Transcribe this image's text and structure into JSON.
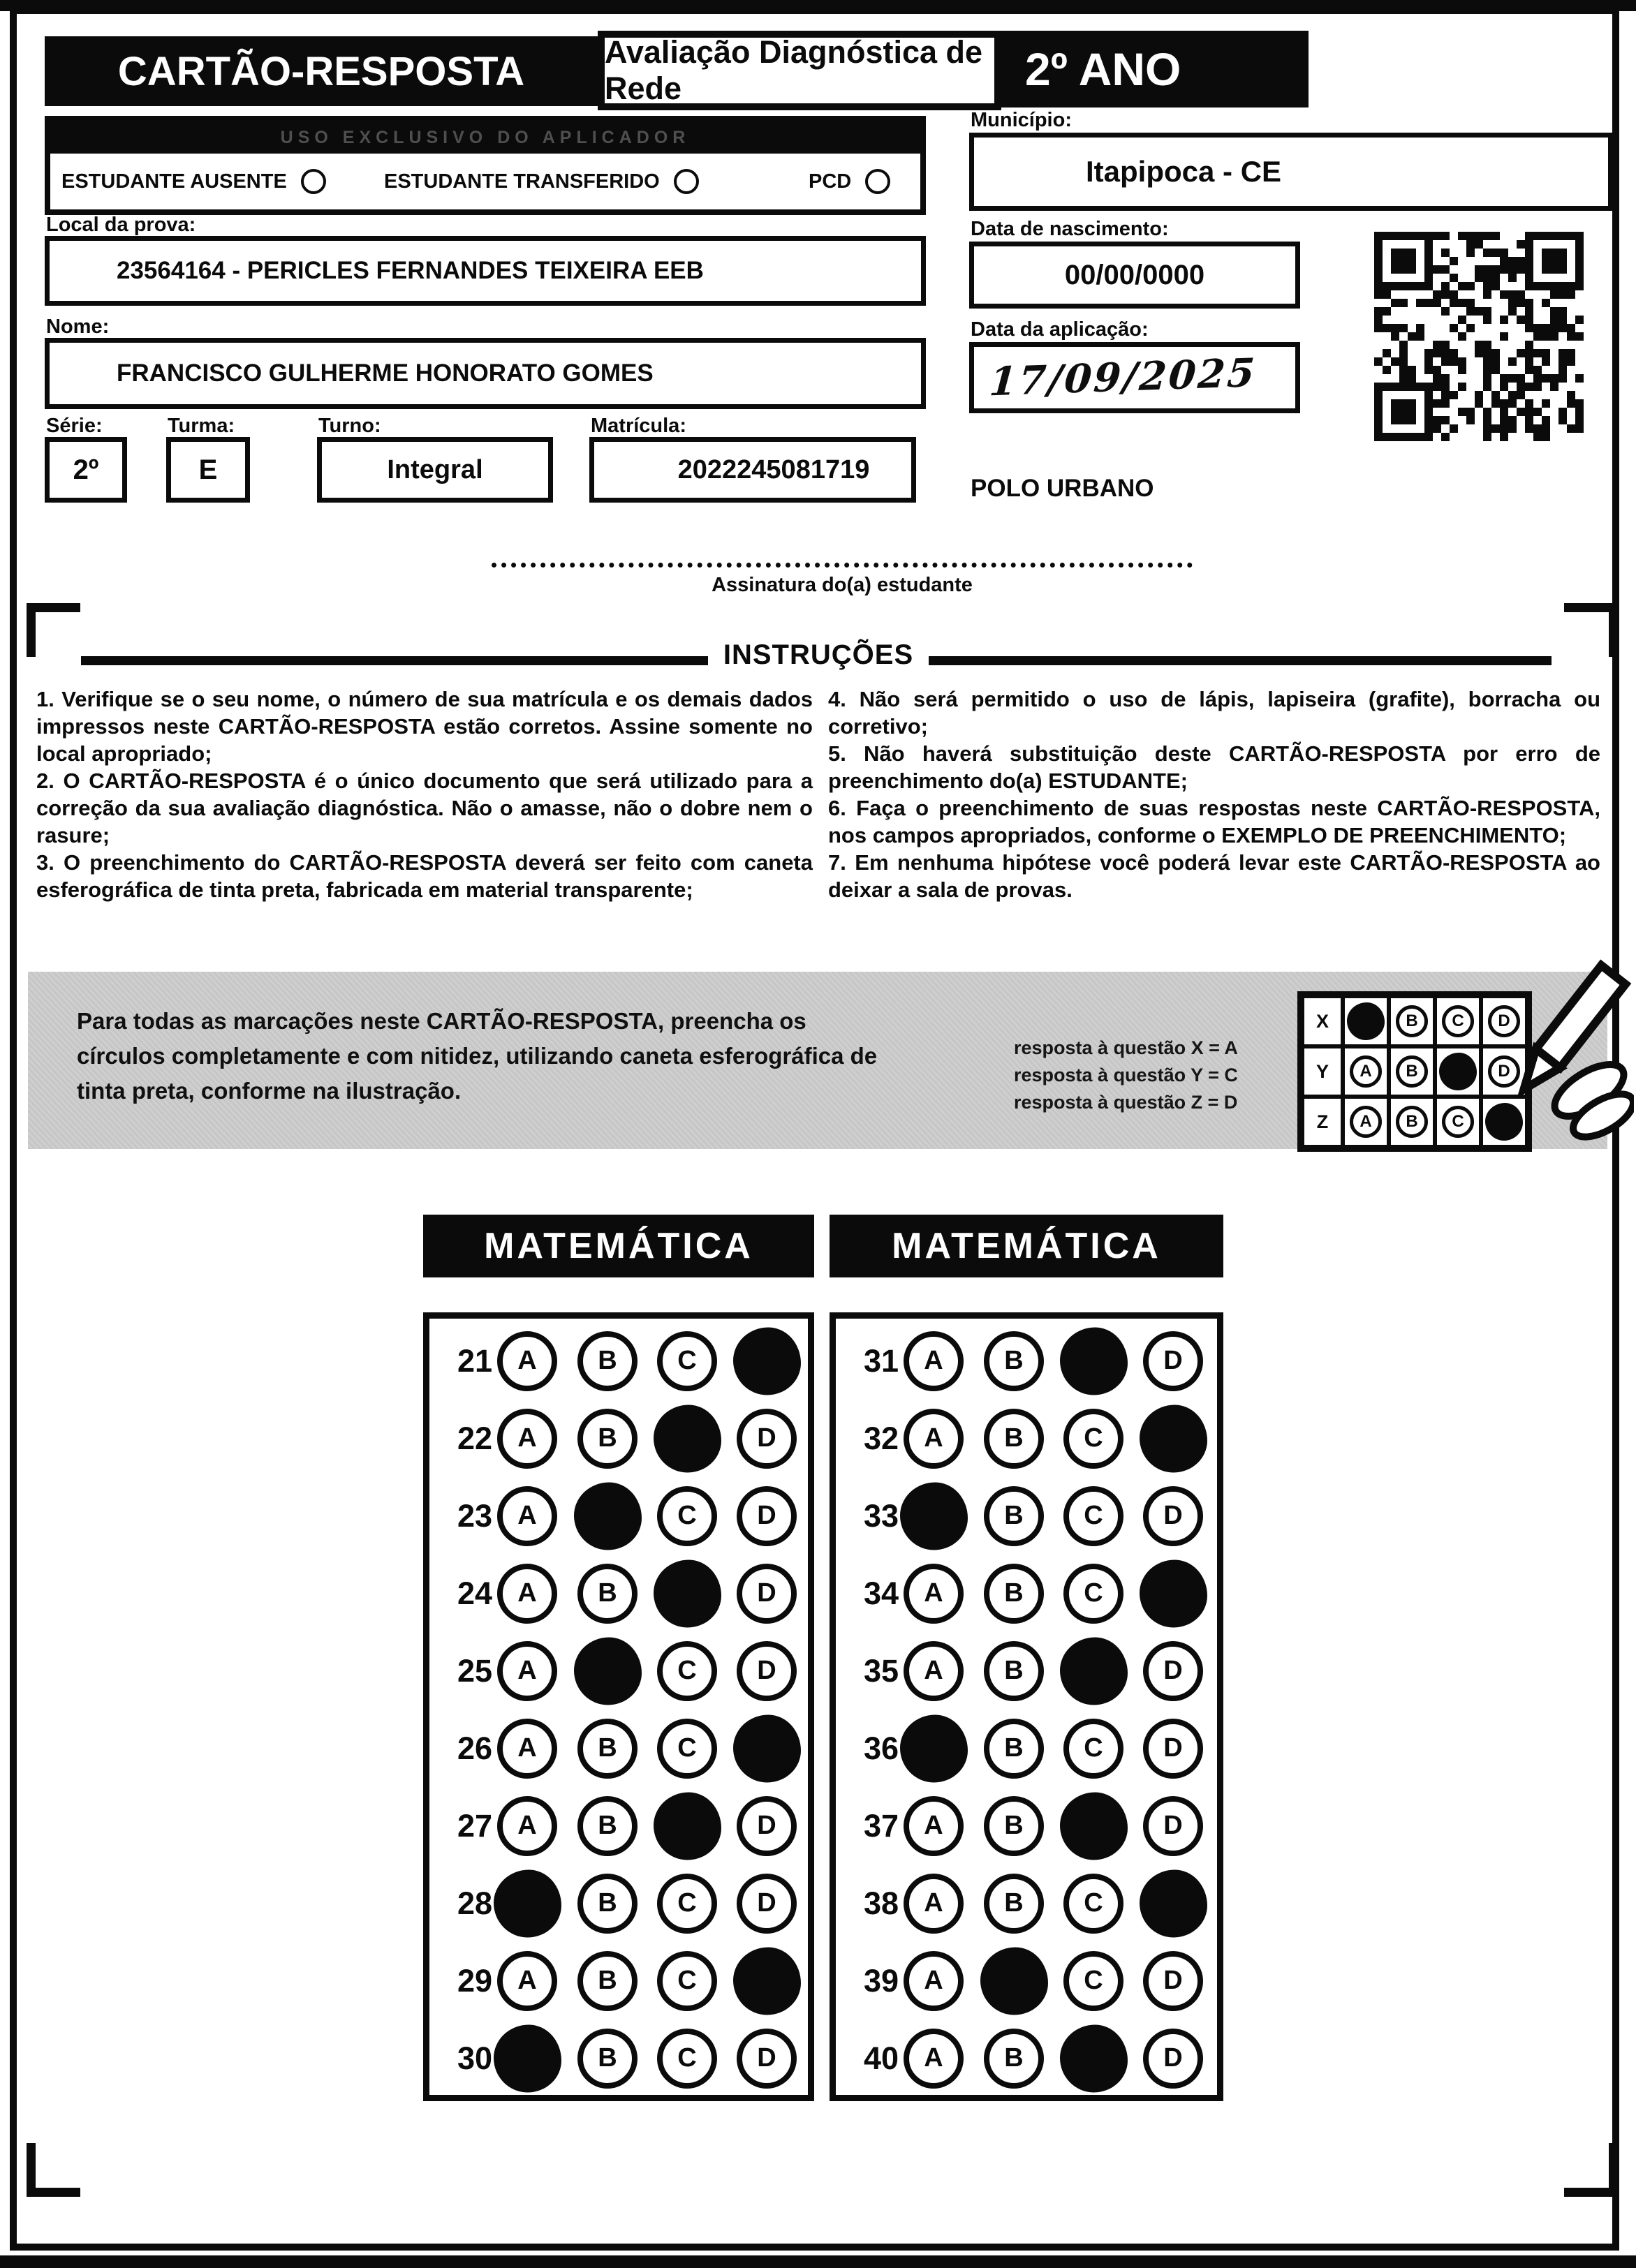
{
  "colors": {
    "ink": "#0b0b0b",
    "band_bg": "#c9c9c9",
    "header_bg": "#0b0b0b"
  },
  "header": {
    "card_title": "CARTÃO-RESPOSTA",
    "exam_title": "Avaliação Diagnóstica de Rede",
    "grade": "2º ANO"
  },
  "aplicador": {
    "bar_label": "USO EXCLUSIVO DO APLICADOR",
    "options": [
      {
        "label": "ESTUDANTE AUSENTE",
        "checked": false
      },
      {
        "label": "ESTUDANTE TRANSFERIDO",
        "checked": false
      },
      {
        "label": "PCD",
        "checked": false
      }
    ]
  },
  "fields": {
    "local_label": "Local da prova:",
    "local_value": "23564164 - PERICLES FERNANDES TEIXEIRA EEB",
    "nome_label": "Nome:",
    "nome_value": "FRANCISCO GULHERME HONORATO GOMES",
    "serie_label": "Série:",
    "serie_value": "2º",
    "turma_label": "Turma:",
    "turma_value": "E",
    "turno_label": "Turno:",
    "turno_value": "Integral",
    "matricula_label": "Matrícula:",
    "matricula_value": "2022245081719",
    "municipio_label": "Município:",
    "municipio_value": "Itapipoca - CE",
    "nascimento_label": "Data de nascimento:",
    "nascimento_value": "00/00/0000",
    "aplicacao_label": "Data da aplicação:",
    "aplicacao_value": "17/09/2025",
    "polo": "POLO URBANO"
  },
  "signature": {
    "label": "Assinatura do(a) estudante"
  },
  "instructions": {
    "title": "INSTRUÇÕES",
    "left": [
      "1. Verifique se o seu nome, o número de sua matrícula e os demais dados impressos neste CARTÃO-RESPOSTA estão corretos. Assine somente no local apropriado;",
      "2. O CARTÃO-RESPOSTA é o único documento que será utilizado para a correção da sua avaliação diagnóstica. Não o amasse, não o dobre nem o rasure;",
      "3. O preenchimento do CARTÃO-RESPOSTA deverá ser feito com caneta esferográfica de tinta preta, fabricada em material transparente;"
    ],
    "right": [
      "4. Não será permitido o uso de lápis, lapiseira (grafite), borracha ou corretivo;",
      "5. Não haverá substituição deste CARTÃO-RESPOSTA por erro de preenchimento do(a) ESTUDANTE;",
      "6. Faça o preenchimento de suas respostas neste CARTÃO-RESPOSTA, nos campos apropriados, conforme o EXEMPLO DE PREENCHIMENTO;",
      "7. Em nenhuma hipótese você poderá levar este CARTÃO-RESPOSTA ao deixar a sala de provas."
    ]
  },
  "example": {
    "text": "Para todas as marcações neste CARTÃO-RESPOSTA, preencha os círculos completamente e com nitidez, utilizando caneta esferográfica de tinta preta, conforme na ilustração.",
    "legend": [
      "resposta à questão X = A",
      "resposta à questão Y = C",
      "resposta à questão Z = D"
    ],
    "grid": [
      {
        "row": "X",
        "options": [
          "A",
          "B",
          "C",
          "D"
        ],
        "marked": "A"
      },
      {
        "row": "Y",
        "options": [
          "A",
          "B",
          "C",
          "D"
        ],
        "marked": "C"
      },
      {
        "row": "Z",
        "options": [
          "A",
          "B",
          "C",
          "D"
        ],
        "marked": "D"
      }
    ]
  },
  "answers": {
    "options": [
      "A",
      "B",
      "C",
      "D"
    ],
    "sections": [
      {
        "title": "MATEMÁTICA",
        "questions": [
          {
            "n": 21,
            "marked": "D"
          },
          {
            "n": 22,
            "marked": "C"
          },
          {
            "n": 23,
            "marked": "B"
          },
          {
            "n": 24,
            "marked": "C"
          },
          {
            "n": 25,
            "marked": "B"
          },
          {
            "n": 26,
            "marked": "D"
          },
          {
            "n": 27,
            "marked": "C"
          },
          {
            "n": 28,
            "marked": "A"
          },
          {
            "n": 29,
            "marked": "D"
          },
          {
            "n": 30,
            "marked": "A"
          }
        ]
      },
      {
        "title": "MATEMÁTICA",
        "questions": [
          {
            "n": 31,
            "marked": "C"
          },
          {
            "n": 32,
            "marked": "D"
          },
          {
            "n": 33,
            "marked": "A"
          },
          {
            "n": 34,
            "marked": "D"
          },
          {
            "n": 35,
            "marked": "C"
          },
          {
            "n": 36,
            "marked": "A"
          },
          {
            "n": 37,
            "marked": "C"
          },
          {
            "n": 38,
            "marked": "D"
          },
          {
            "n": 39,
            "marked": "B"
          },
          {
            "n": 40,
            "marked": "C"
          }
        ]
      }
    ]
  }
}
